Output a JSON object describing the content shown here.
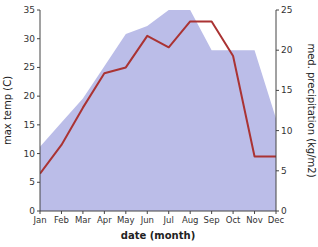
{
  "chart_data": {
    "type": "line",
    "xlabel": "date (month)",
    "ylabel": "max temp (C)",
    "y2label": "med. precipitation (kg/m2)",
    "categories": [
      "Jan",
      "Feb",
      "Mar",
      "Apr",
      "May",
      "Jun",
      "Jul",
      "Aug",
      "Sep",
      "Oct",
      "Nov",
      "Dec"
    ],
    "series": [
      {
        "type": "area",
        "axis": "y2",
        "color": "#bbbde8",
        "values": [
          8.0,
          11.0,
          14.0,
          18.0,
          22.0,
          23.0,
          25.0,
          25.0,
          20.0,
          20.0,
          20.0,
          11.5
        ]
      },
      {
        "type": "line",
        "color": "#aa3333",
        "values": [
          6.5,
          11.5,
          18.0,
          24.0,
          25.0,
          30.5,
          28.5,
          33.0,
          33.0,
          27.0,
          9.5,
          9.5
        ]
      }
    ],
    "ylim": [
      0,
      35
    ],
    "yticks": [
      0,
      5,
      10,
      15,
      20,
      25,
      30,
      35
    ],
    "y2lim": [
      0,
      25
    ],
    "y2ticks": [
      0,
      5,
      10,
      15,
      20,
      25
    ],
    "grid": false
  }
}
